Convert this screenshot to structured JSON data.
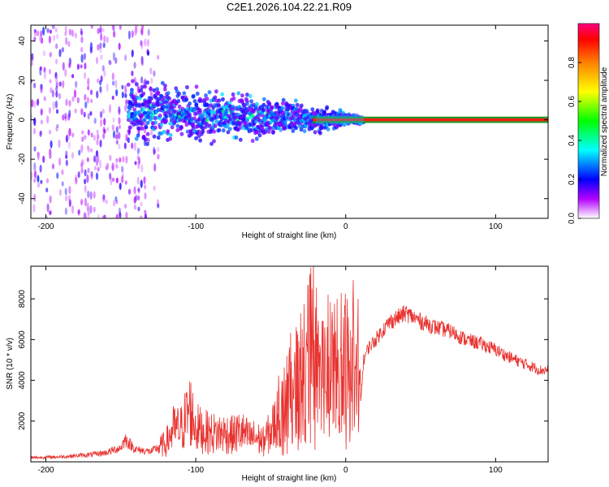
{
  "title": "C2E1.2026.104.22.21.R09",
  "chart_data": [
    {
      "type": "heatmap",
      "xlabel": "Height of straight line (km)",
      "ylabel": "Frequency (Hz)",
      "xlim": [
        -210,
        135
      ],
      "ylim": [
        -50,
        48
      ],
      "xticks": [
        -200,
        -100,
        0,
        100
      ],
      "yticks": [
        -40,
        -20,
        0,
        20,
        40
      ],
      "colorbar": {
        "label": "Normalized spectral amplitude",
        "range": [
          0,
          1
        ],
        "ticks": [
          0.0,
          0.2,
          0.4,
          0.6,
          0.8
        ]
      },
      "features": {
        "carrier_line_freq_hz": 0,
        "carrier_line_amplitude": 0.95,
        "noise_region_km": [
          -210,
          -125
        ],
        "scintillation_region_km": [
          -125,
          10
        ]
      }
    },
    {
      "type": "line",
      "xlabel": "Height of straight line (km)",
      "ylabel": "SNR (10 * v/v)",
      "xlim": [
        -210,
        135
      ],
      "ylim": [
        0,
        9600
      ],
      "xticks": [
        -200,
        -100,
        0,
        100
      ],
      "yticks": [
        2000,
        4000,
        6000,
        8000
      ],
      "series": [
        {
          "name": "SNR",
          "color": "#e8322f",
          "x": [
            -210,
            -190,
            -170,
            -160,
            -150,
            -147,
            -140,
            -130,
            -120,
            -115,
            -110,
            -104,
            -100,
            -95,
            -90,
            -85,
            -80,
            -75,
            -70,
            -65,
            -60,
            -55,
            -50,
            -45,
            -40,
            -35,
            -30,
            -25,
            -23,
            -20,
            -18,
            -15,
            -10,
            -5,
            0,
            5,
            8,
            10,
            11,
            12,
            15,
            20,
            25,
            30,
            35,
            40,
            45,
            50,
            60,
            70,
            80,
            90,
            100,
            110,
            120,
            130,
            135
          ],
          "y": [
            200,
            250,
            350,
            450,
            700,
            1100,
            600,
            500,
            900,
            1600,
            1600,
            2600,
            1700,
            1500,
            1400,
            1400,
            1400,
            1300,
            1500,
            1200,
            1200,
            1000,
            1500,
            2200,
            2900,
            3600,
            4300,
            5000,
            7000,
            5500,
            5000,
            5500,
            4500,
            5000,
            5200,
            5300,
            5000,
            3000,
            4000,
            5000,
            5600,
            6000,
            6500,
            6900,
            7100,
            7300,
            7100,
            6900,
            6600,
            6400,
            6000,
            5800,
            5500,
            5100,
            4800,
            4500,
            4500
          ]
        }
      ]
    }
  ]
}
